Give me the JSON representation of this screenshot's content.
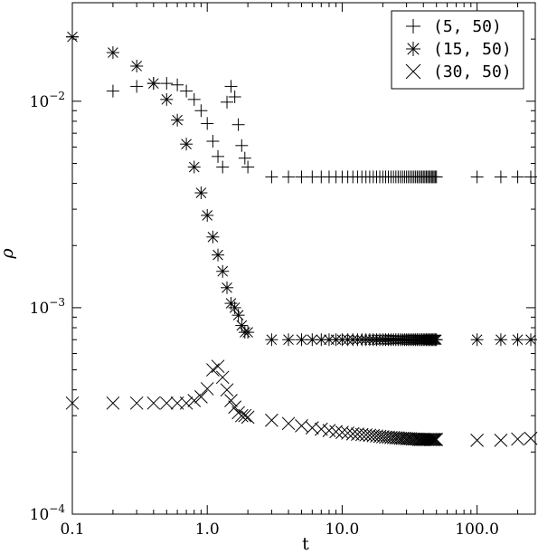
{
  "chart_data": {
    "type": "scatter",
    "xlabel": "t",
    "ylabel": "ρ",
    "x_scale": "log",
    "y_scale": "log",
    "xlim": [
      0.1,
      270
    ],
    "ylim": [
      0.0001,
      0.03
    ],
    "x_ticks": [
      {
        "value": 0.1,
        "label": "0.1"
      },
      {
        "value": 1,
        "label": "1.0"
      },
      {
        "value": 10,
        "label": "10.0"
      },
      {
        "value": 100,
        "label": "100.0"
      }
    ],
    "y_ticks": [
      {
        "value": 0.0001,
        "base": "10",
        "exp": "−4"
      },
      {
        "value": 0.001,
        "base": "10",
        "exp": "−3"
      },
      {
        "value": 0.01,
        "base": "10",
        "exp": "−2"
      }
    ],
    "legend_position": "top-right",
    "color": "#000000",
    "series": [
      {
        "name": "(5, 50)",
        "marker": "plus",
        "x": [
          0.1,
          0.2,
          0.3,
          0.4,
          0.5,
          0.6,
          0.7,
          0.8,
          0.9,
          1.0,
          1.1,
          1.2,
          1.3,
          1.4,
          1.5,
          1.6,
          1.7,
          1.8,
          1.9,
          2.0,
          3,
          4,
          5,
          6,
          7,
          8,
          9,
          10,
          11,
          12,
          13,
          14,
          15,
          16,
          17,
          18,
          19,
          20,
          21,
          22,
          23,
          24,
          25,
          26,
          27,
          28,
          29,
          30,
          31,
          32,
          33,
          34,
          35,
          36,
          37,
          38,
          39,
          40,
          41,
          42,
          43,
          44,
          45,
          46,
          47,
          48,
          49,
          50,
          100,
          150,
          200,
          250
        ],
        "y": [
          0.0205,
          0.0112,
          0.0118,
          0.0122,
          0.0122,
          0.012,
          0.0112,
          0.0102,
          0.009,
          0.0078,
          0.0064,
          0.0054,
          0.0048,
          0.0099,
          0.0118,
          0.0105,
          0.0077,
          0.0061,
          0.0053,
          0.0048,
          0.0043,
          0.0043,
          0.0043,
          0.0043,
          0.0043,
          0.0043,
          0.0043,
          0.0043,
          0.0043,
          0.0043,
          0.0043,
          0.0043,
          0.0043,
          0.0043,
          0.0043,
          0.0043,
          0.0043,
          0.0043,
          0.0043,
          0.0043,
          0.0043,
          0.0043,
          0.0043,
          0.0043,
          0.0043,
          0.0043,
          0.0043,
          0.0043,
          0.0043,
          0.0043,
          0.0043,
          0.0043,
          0.0043,
          0.0043,
          0.0043,
          0.0043,
          0.0043,
          0.0043,
          0.0043,
          0.0043,
          0.0043,
          0.0043,
          0.0043,
          0.0043,
          0.0043,
          0.0043,
          0.0043,
          0.0043,
          0.0043,
          0.0043,
          0.0043,
          0.0043
        ]
      },
      {
        "name": "(15, 50)",
        "marker": "asterisk",
        "x": [
          0.1,
          0.2,
          0.3,
          0.4,
          0.5,
          0.6,
          0.7,
          0.8,
          0.9,
          1.0,
          1.1,
          1.2,
          1.3,
          1.4,
          1.5,
          1.6,
          1.7,
          1.8,
          1.9,
          2.0,
          3,
          4,
          5,
          6,
          7,
          8,
          9,
          10,
          11,
          12,
          13,
          14,
          15,
          16,
          17,
          18,
          19,
          20,
          21,
          22,
          23,
          24,
          25,
          26,
          27,
          28,
          29,
          30,
          31,
          32,
          33,
          34,
          35,
          36,
          37,
          38,
          39,
          40,
          41,
          42,
          43,
          44,
          45,
          46,
          47,
          48,
          49,
          50,
          100,
          150,
          200,
          250
        ],
        "y": [
          0.0205,
          0.0172,
          0.0148,
          0.0122,
          0.0102,
          0.0081,
          0.0062,
          0.0048,
          0.0036,
          0.0028,
          0.0022,
          0.0018,
          0.0015,
          0.00125,
          0.00105,
          0.001,
          0.00092,
          0.00082,
          0.00076,
          0.00076,
          0.0007,
          0.0007,
          0.0007,
          0.0007,
          0.0007,
          0.0007,
          0.0007,
          0.0007,
          0.0007,
          0.0007,
          0.0007,
          0.0007,
          0.0007,
          0.0007,
          0.0007,
          0.0007,
          0.0007,
          0.0007,
          0.0007,
          0.0007,
          0.0007,
          0.0007,
          0.0007,
          0.0007,
          0.0007,
          0.0007,
          0.0007,
          0.0007,
          0.0007,
          0.0007,
          0.0007,
          0.0007,
          0.0007,
          0.0007,
          0.0007,
          0.0007,
          0.0007,
          0.0007,
          0.0007,
          0.0007,
          0.0007,
          0.0007,
          0.0007,
          0.0007,
          0.0007,
          0.0007,
          0.0007,
          0.0007,
          0.0007,
          0.0007,
          0.0007,
          0.0007
        ]
      },
      {
        "name": "(30, 50)",
        "marker": "cross",
        "x": [
          0.1,
          0.2,
          0.3,
          0.4,
          0.5,
          0.6,
          0.7,
          0.8,
          0.9,
          1.0,
          1.1,
          1.2,
          1.3,
          1.4,
          1.5,
          1.6,
          1.7,
          1.8,
          1.9,
          2.0,
          3,
          4,
          5,
          6,
          7,
          8,
          9,
          10,
          11,
          12,
          13,
          14,
          15,
          16,
          17,
          18,
          19,
          20,
          21,
          22,
          23,
          24,
          25,
          26,
          27,
          28,
          29,
          30,
          31,
          32,
          33,
          34,
          35,
          36,
          37,
          38,
          39,
          40,
          41,
          42,
          43,
          44,
          45,
          46,
          47,
          48,
          49,
          50,
          100,
          150,
          200,
          250
        ],
        "y": [
          0.000345,
          0.000345,
          0.000345,
          0.000345,
          0.000345,
          0.000345,
          0.000345,
          0.000355,
          0.00037,
          0.000405,
          0.0005,
          0.00052,
          0.00046,
          0.0004,
          0.000355,
          0.00033,
          0.00031,
          0.0003,
          0.0003,
          0.000295,
          0.000285,
          0.000275,
          0.000268,
          0.000262,
          0.000258,
          0.000254,
          0.000251,
          0.000249,
          0.000247,
          0.000245,
          0.000244,
          0.000243,
          0.000242,
          0.000241,
          0.00024,
          0.000239,
          0.000238,
          0.000237,
          0.000236,
          0.000236,
          0.000235,
          0.000235,
          0.000234,
          0.000234,
          0.000233,
          0.000233,
          0.000233,
          0.000232,
          0.000232,
          0.000232,
          0.000231,
          0.000231,
          0.000231,
          0.000231,
          0.00023,
          0.00023,
          0.00023,
          0.00023,
          0.00023,
          0.00023,
          0.00023,
          0.00023,
          0.00023,
          0.00023,
          0.00023,
          0.00023,
          0.00023,
          0.00023,
          0.000228,
          0.000228,
          0.000231,
          0.000233
        ]
      }
    ]
  }
}
